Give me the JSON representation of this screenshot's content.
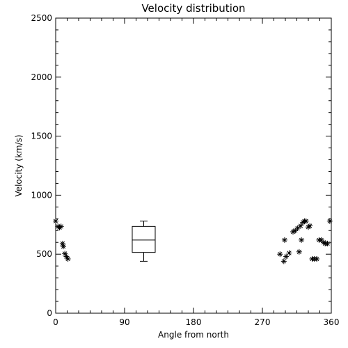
{
  "chart_data": {
    "type": "scatter",
    "title": "Velocity distribution",
    "xlabel": "Angle from north",
    "ylabel": "Velocity (km/s)",
    "xlim": [
      0,
      360
    ],
    "ylim": [
      0,
      2500
    ],
    "x_ticks": [
      "0",
      "90",
      "180",
      "270",
      "360"
    ],
    "y_ticks": [
      "0",
      "500",
      "1000",
      "1500",
      "2000",
      "2500"
    ],
    "grid": false,
    "marker": "asterisk",
    "color": "#000000",
    "points": [
      {
        "x": 0,
        "y": 780
      },
      {
        "x": 3,
        "y": 735
      },
      {
        "x": 5,
        "y": 725
      },
      {
        "x": 7,
        "y": 735
      },
      {
        "x": 9,
        "y": 590
      },
      {
        "x": 10,
        "y": 565
      },
      {
        "x": 12,
        "y": 505
      },
      {
        "x": 14,
        "y": 480
      },
      {
        "x": 16,
        "y": 460
      },
      {
        "x": 293,
        "y": 500
      },
      {
        "x": 298,
        "y": 440
      },
      {
        "x": 299,
        "y": 620
      },
      {
        "x": 301,
        "y": 480
      },
      {
        "x": 305,
        "y": 510
      },
      {
        "x": 310,
        "y": 690
      },
      {
        "x": 313,
        "y": 700
      },
      {
        "x": 316,
        "y": 720
      },
      {
        "x": 318,
        "y": 520
      },
      {
        "x": 320,
        "y": 740
      },
      {
        "x": 321,
        "y": 620
      },
      {
        "x": 323,
        "y": 770
      },
      {
        "x": 325,
        "y": 780
      },
      {
        "x": 327,
        "y": 780
      },
      {
        "x": 330,
        "y": 730
      },
      {
        "x": 332,
        "y": 740
      },
      {
        "x": 335,
        "y": 460
      },
      {
        "x": 338,
        "y": 460
      },
      {
        "x": 341,
        "y": 460
      },
      {
        "x": 344,
        "y": 620
      },
      {
        "x": 347,
        "y": 620
      },
      {
        "x": 350,
        "y": 600
      },
      {
        "x": 352,
        "y": 590
      },
      {
        "x": 355,
        "y": 590
      },
      {
        "x": 358,
        "y": 780
      }
    ],
    "boxplot": {
      "x": 115,
      "half_width": 15,
      "whisker_low": 440,
      "q1": 515,
      "median": 620,
      "q3": 735,
      "whisker_high": 780
    }
  }
}
